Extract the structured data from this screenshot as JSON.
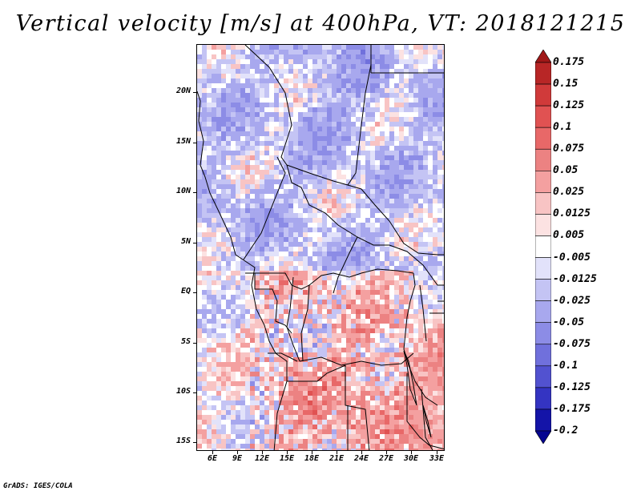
{
  "title": "Vertical velocity [m/s] at 400hPa, VT: 2018121215",
  "footer": "GrADS: IGES/COLA",
  "map": {
    "lat_labels": [
      "20N",
      "15N",
      "10N",
      "5N",
      "EQ",
      "5S",
      "10S",
      "15S"
    ],
    "lon_labels": [
      "6E",
      "9E",
      "12E",
      "15E",
      "18E",
      "21E",
      "24E",
      "27E",
      "30E",
      "33E"
    ]
  },
  "colorbar": {
    "labels": [
      "0.175",
      "0.15",
      "0.125",
      "0.1",
      "0.075",
      "0.05",
      "0.025",
      "0.0125",
      "0.005",
      "-0.005",
      "-0.0125",
      "-0.025",
      "-0.05",
      "-0.075",
      "-0.1",
      "-0.125",
      "-0.175",
      "-0.2"
    ],
    "colors": [
      "#a01818",
      "#b82626",
      "#d03a3a",
      "#e05252",
      "#e86868",
      "#ec8282",
      "#f4a0a0",
      "#f8c4c4",
      "#fce2e2",
      "#ffffff",
      "#e2e2fa",
      "#c4c4f4",
      "#a8a8ee",
      "#8c8ce6",
      "#7070dc",
      "#5252d0",
      "#3434c2",
      "#1414a8",
      "#050590"
    ]
  }
}
